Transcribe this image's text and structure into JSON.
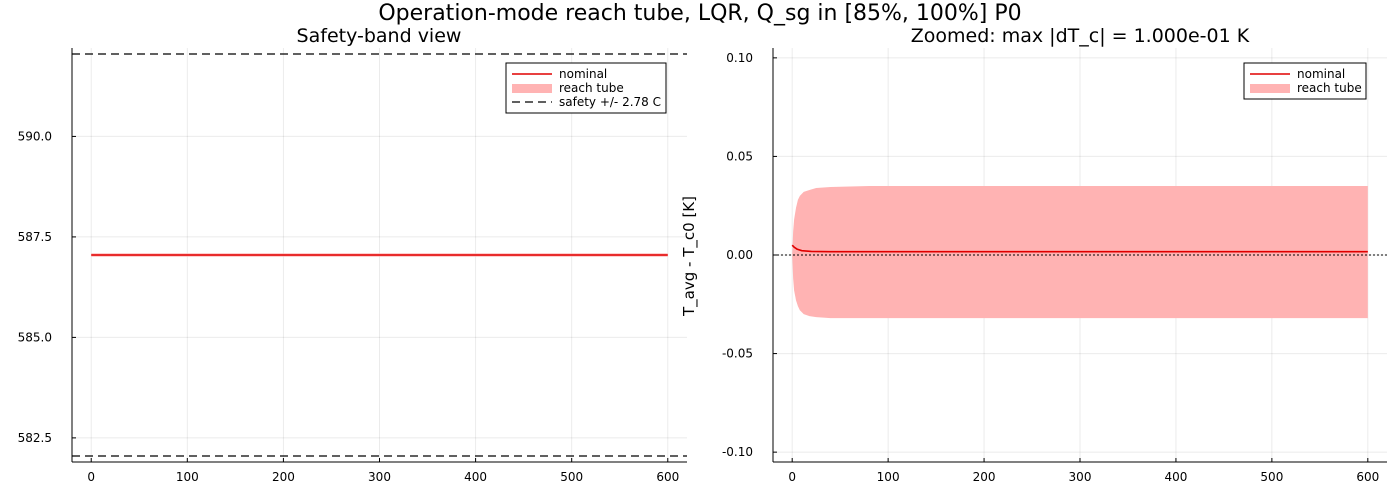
{
  "figure": {
    "title": "Operation-mode reach tube, LQR, Q_sg in [85%, 100%] P0"
  },
  "chart_data": [
    {
      "type": "line",
      "title": "Safety-band view",
      "xlabel": "",
      "ylabel": "",
      "xlim": [
        -20,
        620
      ],
      "ylim": [
        581.9,
        592.2
      ],
      "xticks": [
        0,
        100,
        200,
        300,
        400,
        500,
        600
      ],
      "xtick_labels": [
        "0",
        "100",
        "200",
        "300",
        "400",
        "500",
        "600"
      ],
      "yticks": [
        582.5,
        585.0,
        587.5,
        590.0
      ],
      "ytick_labels": [
        "582.5",
        "585.0",
        "587.5",
        "590.0"
      ],
      "grid": true,
      "legend_position": "top-right",
      "legend": [
        "nominal",
        "reach tube",
        "safety +/- 2.78 C"
      ],
      "series": [
        {
          "name": "nominal",
          "kind": "line",
          "color": "#e00000",
          "x": [
            0,
            600
          ],
          "y": [
            587.05,
            587.05
          ]
        },
        {
          "name": "reach tube",
          "kind": "band",
          "color": "#ffb3b3",
          "x": [
            0,
            600
          ],
          "lower": [
            587.01,
            587.01
          ],
          "upper": [
            587.09,
            587.09
          ]
        },
        {
          "name": "safety +/- 2.78 C",
          "kind": "hline_dashed",
          "color": "#000000",
          "y": [
            582.05,
            592.05
          ]
        }
      ]
    },
    {
      "type": "line",
      "title": "Zoomed: max |dT_c| = 1.000e-01 K",
      "xlabel": "",
      "ylabel": "T_avg - T_c0 [K]",
      "xlim": [
        -20,
        620
      ],
      "ylim": [
        -0.105,
        0.105
      ],
      "xticks": [
        0,
        100,
        200,
        300,
        400,
        500,
        600
      ],
      "xtick_labels": [
        "0",
        "100",
        "200",
        "300",
        "400",
        "500",
        "600"
      ],
      "yticks": [
        -0.1,
        -0.05,
        0.0,
        0.05,
        0.1
      ],
      "ytick_labels": [
        "-0.10",
        "-0.05",
        "0.00",
        "0.05",
        "0.10"
      ],
      "grid": true,
      "legend_position": "top-right",
      "legend": [
        "nominal",
        "reach tube"
      ],
      "series": [
        {
          "name": "nominal",
          "kind": "line",
          "color": "#e00000",
          "x": [
            0,
            2,
            5,
            10,
            20,
            40,
            100,
            300,
            600
          ],
          "y": [
            0.005,
            0.004,
            0.003,
            0.0022,
            0.0018,
            0.0017,
            0.0017,
            0.0017,
            0.0017
          ]
        },
        {
          "name": "reach tube",
          "kind": "band",
          "color": "#ffb3b3",
          "x": [
            0,
            1,
            2,
            4,
            6,
            8,
            12,
            18,
            25,
            40,
            80,
            200,
            600
          ],
          "upper": [
            0.0,
            0.012,
            0.018,
            0.024,
            0.028,
            0.03,
            0.032,
            0.033,
            0.034,
            0.0345,
            0.035,
            0.035,
            0.035
          ],
          "lower": [
            0.0,
            -0.012,
            -0.018,
            -0.023,
            -0.026,
            -0.028,
            -0.03,
            -0.031,
            -0.0315,
            -0.032,
            -0.032,
            -0.032,
            -0.032
          ]
        },
        {
          "name": "",
          "kind": "hline_dotted",
          "color": "#000000",
          "y": [
            0.0
          ]
        }
      ]
    }
  ]
}
